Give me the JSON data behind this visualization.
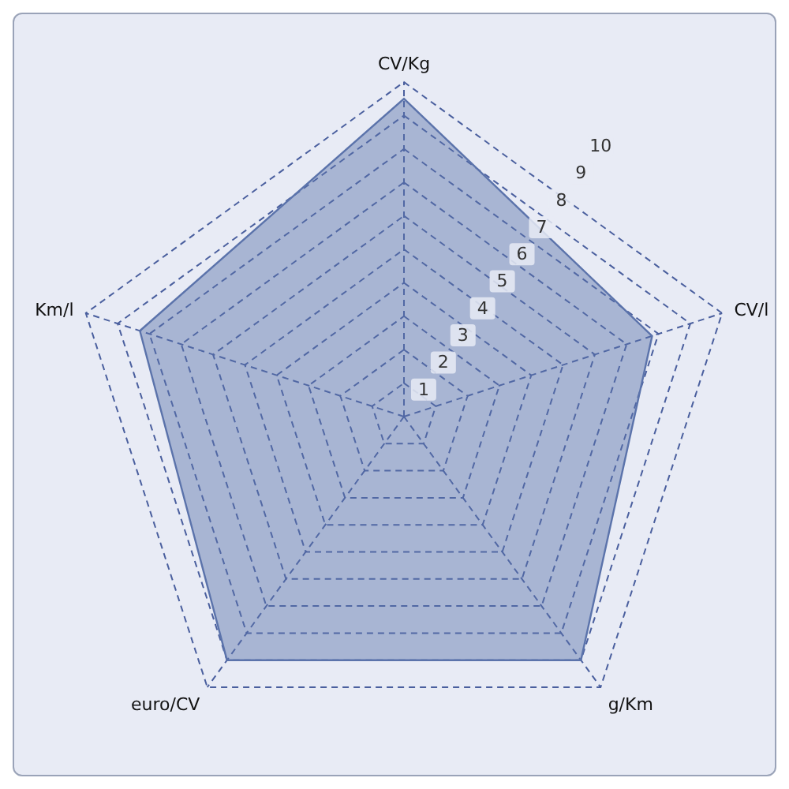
{
  "chart_data": {
    "type": "radar",
    "categories": [
      "CV/Kg",
      "CV/l",
      "g/Km",
      "euro/CV",
      "Km/l"
    ],
    "series": [
      {
        "color": "#5b73ab",
        "values": [
          9.5,
          7.8,
          9,
          9,
          8.3
        ]
      }
    ],
    "ylim": [
      0,
      10
    ],
    "yticks": [
      1,
      2,
      3,
      4,
      5,
      6,
      7,
      8,
      9,
      10
    ],
    "grid": true,
    "marker": "none"
  }
}
